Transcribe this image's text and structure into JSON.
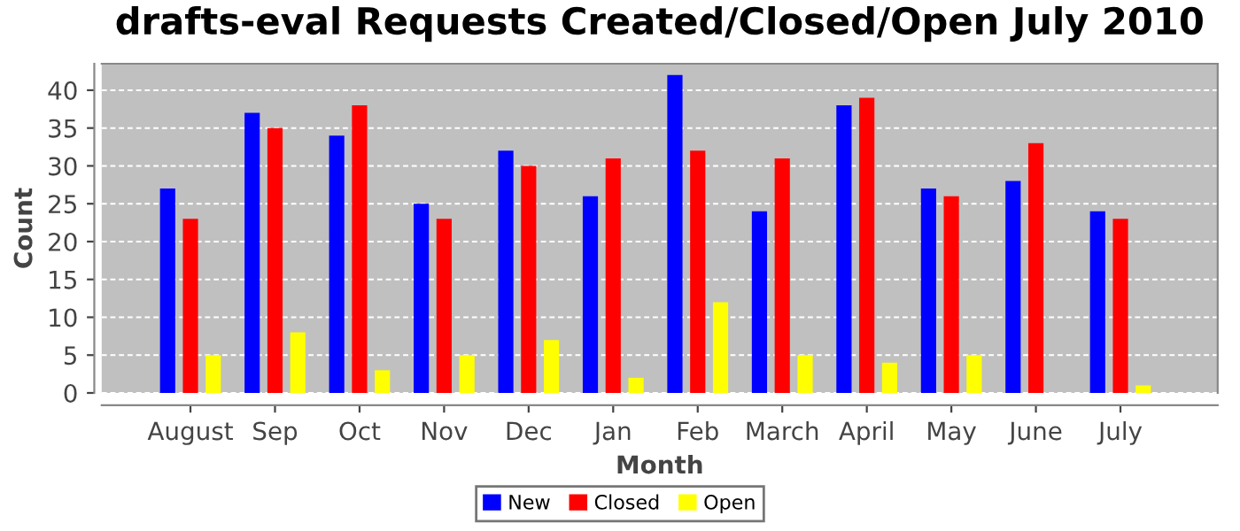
{
  "chart_data": {
    "type": "bar",
    "title": "drafts-eval Requests Created/Closed/Open July 2010",
    "xlabel": "Month",
    "ylabel": "Count",
    "categories": [
      "August",
      "Sep",
      "Oct",
      "Nov",
      "Dec",
      "Jan",
      "Feb",
      "March",
      "April",
      "May",
      "June",
      "July"
    ],
    "series": [
      {
        "name": "New",
        "color": "#0000ff",
        "values": [
          27,
          37,
          34,
          25,
          32,
          26,
          42,
          24,
          38,
          27,
          28,
          24
        ]
      },
      {
        "name": "Closed",
        "color": "#ff0000",
        "values": [
          23,
          35,
          38,
          23,
          30,
          31,
          32,
          31,
          39,
          26,
          33,
          23
        ]
      },
      {
        "name": "Open",
        "color": "#ffff00",
        "values": [
          5,
          8,
          3,
          5,
          7,
          2,
          12,
          5,
          4,
          5,
          0,
          1
        ]
      }
    ],
    "ylim": [
      0,
      43.5
    ],
    "yticks": [
      0,
      5,
      10,
      15,
      20,
      25,
      30,
      35,
      40
    ],
    "grid": "y",
    "legend": "bottom"
  }
}
